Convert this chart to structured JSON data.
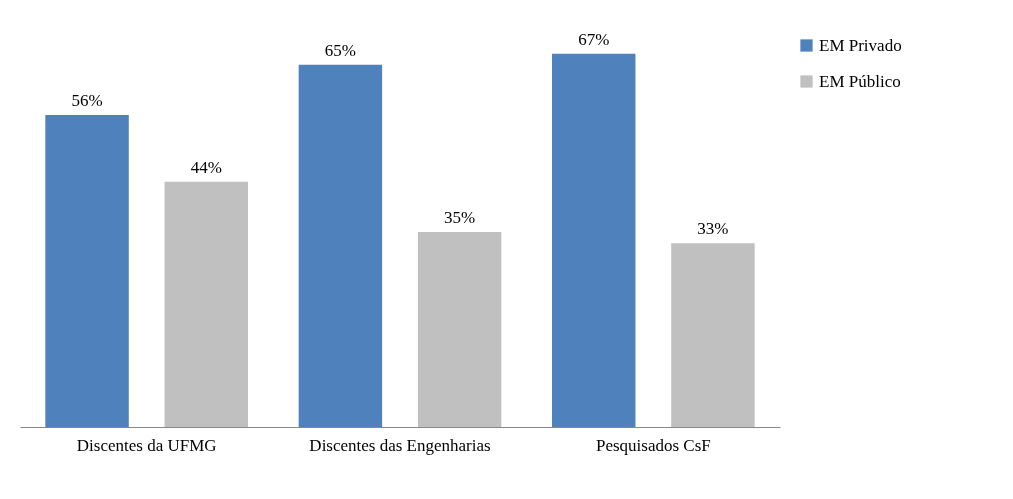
{
  "chart_data": {
    "type": "bar",
    "categories": [
      "Discentes da UFMG",
      "Discentes das Engenharias",
      "Pesquisados CsF"
    ],
    "series": [
      {
        "name": "EM Privado",
        "color": "#4f81bd",
        "values": [
          56,
          65,
          67
        ],
        "value_labels": [
          "56%",
          "65%",
          "67%"
        ]
      },
      {
        "name": "EM Público",
        "color": "#c0c0c0",
        "values": [
          44,
          35,
          33
        ],
        "value_labels": [
          "44%",
          "35%",
          "33%"
        ]
      }
    ],
    "legend": "right"
  }
}
